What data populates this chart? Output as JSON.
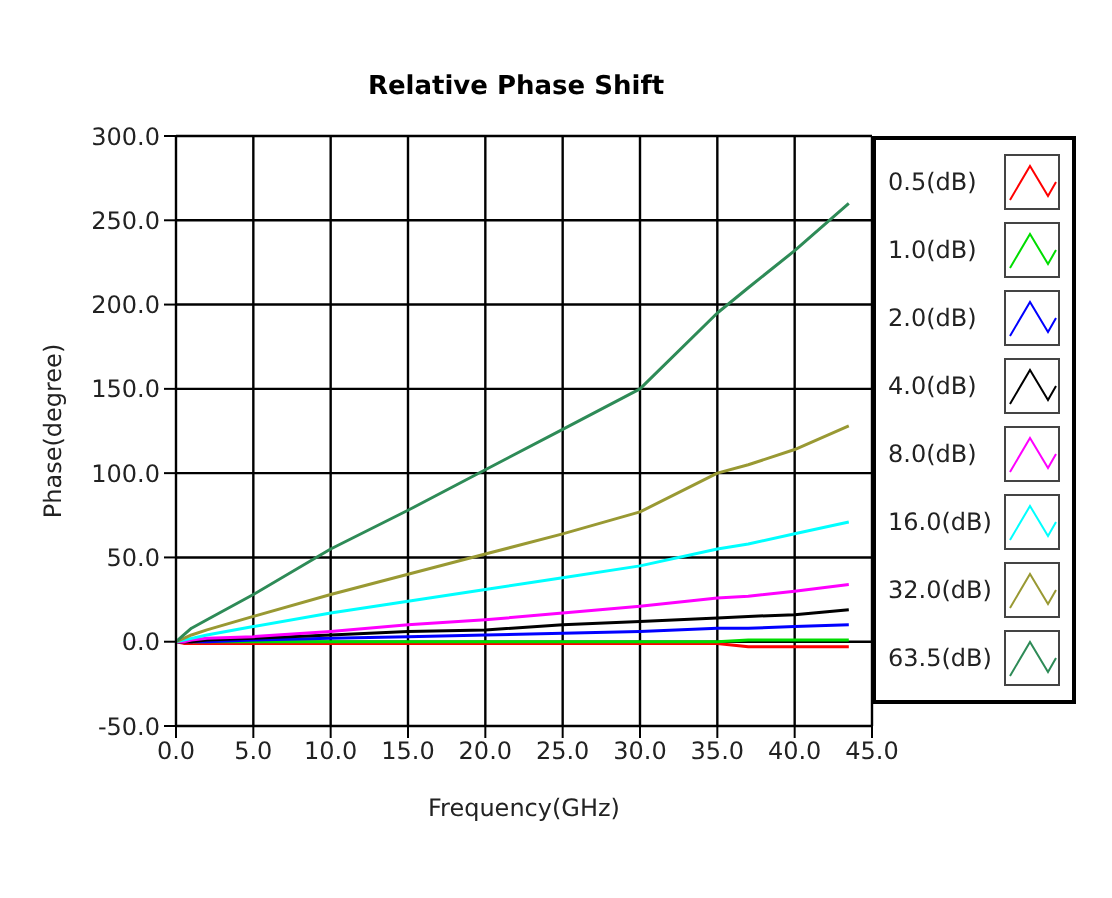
{
  "chart_data": {
    "type": "line",
    "title": "Relative Phase Shift",
    "xlabel": "Frequency(GHz)",
    "ylabel": "Phase(degree)",
    "x": [
      0,
      0.5,
      1,
      2,
      5,
      10,
      15,
      20,
      25,
      30,
      35,
      37,
      40,
      43.5
    ],
    "series": [
      {
        "name": "0.5(dB)",
        "color": "#ff0000",
        "values": [
          0,
          -1,
          -1,
          -1,
          -1,
          -1,
          -1,
          -1,
          -1,
          -1,
          -1,
          -3,
          -3,
          -3
        ]
      },
      {
        "name": "1.0(dB)",
        "color": "#00dd00",
        "values": [
          null,
          null,
          0,
          0,
          0,
          0,
          0,
          0,
          0,
          0,
          0,
          1,
          1,
          1
        ]
      },
      {
        "name": "2.0(dB)",
        "color": "#0000ff",
        "values": [
          0,
          0,
          0,
          0,
          1,
          2,
          3,
          4,
          5,
          6,
          8,
          8,
          9,
          10
        ]
      },
      {
        "name": "4.0(dB)",
        "color": "#000000",
        "values": [
          0,
          0,
          0,
          1,
          2,
          4,
          6,
          7,
          10,
          12,
          14,
          15,
          16,
          19
        ]
      },
      {
        "name": "8.0(dB)",
        "color": "#ff00ff",
        "values": [
          0,
          0,
          1,
          2,
          3,
          6,
          10,
          13,
          17,
          21,
          26,
          27,
          30,
          34
        ]
      },
      {
        "name": "16.0(dB)",
        "color": "#00ffff",
        "values": [
          0,
          1,
          2,
          4,
          9,
          17,
          24,
          31,
          38,
          45,
          55,
          58,
          64,
          71
        ]
      },
      {
        "name": "32.0(dB)",
        "color": "#999933",
        "values": [
          0,
          2,
          4,
          7,
          15,
          28,
          40,
          52,
          64,
          77,
          100,
          105,
          114,
          128
        ]
      },
      {
        "name": "63.5(dB)",
        "color": "#2e8b57",
        "values": [
          0,
          4,
          8,
          13,
          28,
          55,
          78,
          102,
          126,
          150,
          195,
          210,
          232,
          260
        ]
      }
    ],
    "xlim": [
      0,
      45
    ],
    "xticks": [
      {
        "value": 0,
        "label": "0.0"
      },
      {
        "value": 5,
        "label": "5.0"
      },
      {
        "value": 10,
        "label": "10.0"
      },
      {
        "value": 15,
        "label": "15.0"
      },
      {
        "value": 20,
        "label": "20.0"
      },
      {
        "value": 25,
        "label": "25.0"
      },
      {
        "value": 30,
        "label": "30.0"
      },
      {
        "value": 35,
        "label": "35.0"
      },
      {
        "value": 40,
        "label": "40.0"
      },
      {
        "value": 45,
        "label": "45.0"
      }
    ],
    "ylim": [
      -50,
      300
    ],
    "yticks": [
      {
        "value": -50,
        "label": "-50.0"
      },
      {
        "value": 0,
        "label": "0.0"
      },
      {
        "value": 50,
        "label": "50.0"
      },
      {
        "value": 100,
        "label": "100.0"
      },
      {
        "value": 150,
        "label": "150.0"
      },
      {
        "value": 200,
        "label": "200.0"
      },
      {
        "value": 250,
        "label": "250.0"
      },
      {
        "value": 300,
        "label": "300.0"
      }
    ],
    "grid": true,
    "legend": "right",
    "marker": "none",
    "line_style": "solid"
  }
}
